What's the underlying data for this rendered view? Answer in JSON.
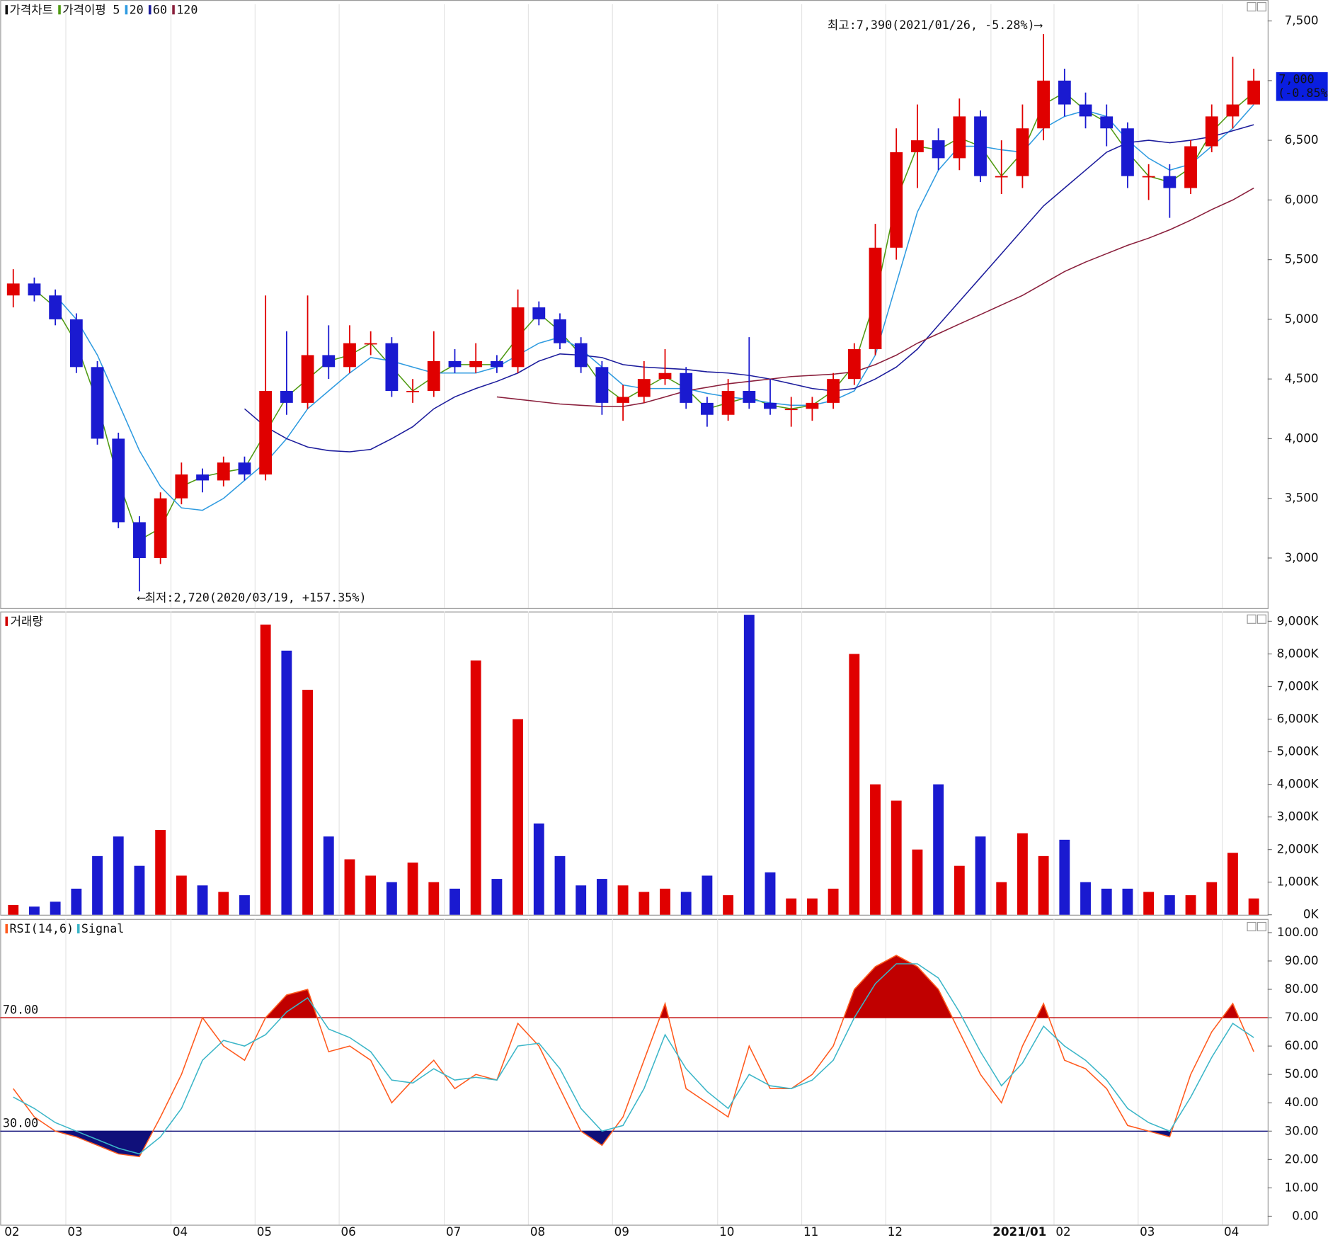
{
  "chart_data": [
    {
      "type": "candlestick",
      "title": "가격차트",
      "ma_label": "가격이평",
      "categories": [
        "02",
        null,
        null,
        "03",
        null,
        null,
        null,
        null,
        "04",
        null,
        null,
        null,
        "05",
        null,
        null,
        null,
        "06",
        null,
        null,
        null,
        null,
        "07",
        null,
        null,
        null,
        "08",
        null,
        null,
        null,
        "09",
        null,
        null,
        null,
        null,
        "10",
        null,
        null,
        null,
        "11",
        null,
        null,
        null,
        "12",
        null,
        null,
        null,
        null,
        "2021/01",
        null,
        null,
        "02",
        null,
        null,
        null,
        "03",
        null,
        null,
        null,
        "04",
        null
      ],
      "open": [
        5200,
        5300,
        5200,
        5000,
        4600,
        4000,
        3300,
        3000,
        3500,
        3700,
        3650,
        3800,
        3700,
        4400,
        4300,
        4700,
        4600,
        4800,
        4800,
        4400,
        4400,
        4650,
        4600,
        4650,
        4600,
        5100,
        5000,
        4800,
        4600,
        4300,
        4350,
        4500,
        4550,
        4300,
        4200,
        4400,
        4300,
        4250,
        4250,
        4300,
        4500,
        4750,
        5600,
        6400,
        6500,
        6350,
        6700,
        6200,
        6200,
        6600,
        7000,
        6800,
        6700,
        6600,
        6200,
        6200,
        6100,
        6450,
        6700,
        6800
      ],
      "high": [
        5420,
        5350,
        5250,
        5050,
        4650,
        4050,
        3350,
        3550,
        3800,
        3750,
        3850,
        3850,
        5200,
        4900,
        5200,
        4950,
        4950,
        4900,
        4850,
        4500,
        4900,
        4750,
        4800,
        4700,
        5250,
        5150,
        5050,
        4850,
        4650,
        4450,
        4650,
        4750,
        4600,
        4350,
        4500,
        4850,
        4500,
        4350,
        4350,
        4550,
        4800,
        5800,
        6600,
        6800,
        6600,
        6850,
        6750,
        6500,
        6800,
        7390,
        7100,
        6900,
        6800,
        6650,
        6300,
        6300,
        6500,
        6800,
        7200,
        7100
      ],
      "low": [
        5100,
        5150,
        4950,
        4550,
        3950,
        3250,
        2720,
        2950,
        3450,
        3550,
        3600,
        3650,
        3650,
        4200,
        4250,
        4500,
        4550,
        4700,
        4350,
        4300,
        4350,
        4550,
        4550,
        4550,
        4550,
        4950,
        4750,
        4550,
        4200,
        4150,
        4300,
        4450,
        4250,
        4100,
        4150,
        4250,
        4200,
        4100,
        4150,
        4250,
        4450,
        4700,
        5500,
        6100,
        6250,
        6250,
        6150,
        6050,
        6100,
        6500,
        6700,
        6600,
        6450,
        6100,
        6000,
        5850,
        6050,
        6400,
        6600,
        6850
      ],
      "close": [
        5300,
        5200,
        5000,
        4600,
        4000,
        3300,
        3000,
        3500,
        3700,
        3650,
        3800,
        3700,
        4400,
        4300,
        4700,
        4600,
        4800,
        4800,
        4400,
        4400,
        4650,
        4600,
        4650,
        4600,
        5100,
        5000,
        4800,
        4600,
        4300,
        4350,
        4500,
        4550,
        4300,
        4200,
        4400,
        4300,
        4250,
        4250,
        4300,
        4500,
        4750,
        5600,
        6400,
        6500,
        6350,
        6700,
        6200,
        6200,
        6600,
        7000,
        6800,
        6700,
        6600,
        6200,
        6200,
        6100,
        6450,
        6700,
        6800,
        7000
      ],
      "up_color": "#e00000",
      "down_color": "#1a1ad0",
      "series": [
        {
          "name": "5",
          "color": "#4f9a12",
          "values": [
            null,
            5250,
            5100,
            4800,
            4300,
            3650,
            3150,
            3250,
            3600,
            3680,
            3720,
            3750,
            4050,
            4350,
            4500,
            4650,
            4700,
            4800,
            4600,
            4400,
            4520,
            4620,
            4620,
            4620,
            4850,
            5050,
            4900,
            4700,
            4450,
            4320,
            4420,
            4520,
            4420,
            4250,
            4300,
            4350,
            4280,
            4250,
            4280,
            4400,
            4620,
            5170,
            6000,
            6450,
            6420,
            6520,
            6450,
            6200,
            6400,
            6800,
            6900,
            6750,
            6650,
            6400,
            6200,
            6150,
            6270,
            6570,
            6750,
            6900
          ]
        },
        {
          "name": "20",
          "color": "#2f9be0",
          "values": [
            null,
            null,
            5200,
            5000,
            4700,
            4300,
            3900,
            3600,
            3420,
            3400,
            3500,
            3650,
            3800,
            4000,
            4250,
            4400,
            4550,
            4680,
            4650,
            4600,
            4550,
            4550,
            4550,
            4600,
            4700,
            4800,
            4850,
            4750,
            4600,
            4450,
            4420,
            4420,
            4420,
            4380,
            4350,
            4330,
            4300,
            4280,
            4280,
            4320,
            4400,
            4700,
            5300,
            5900,
            6250,
            6450,
            6450,
            6420,
            6400,
            6600,
            6700,
            6750,
            6700,
            6500,
            6350,
            6250,
            6300,
            6450,
            6600,
            6800
          ]
        },
        {
          "name": "60",
          "color": "#1c1c9c",
          "values": [
            null,
            null,
            null,
            null,
            null,
            null,
            null,
            null,
            null,
            null,
            null,
            4250,
            4100,
            4000,
            3930,
            3900,
            3890,
            3910,
            4000,
            4100,
            4250,
            4350,
            4420,
            4480,
            4550,
            4650,
            4710,
            4700,
            4680,
            4620,
            4600,
            4590,
            4580,
            4560,
            4550,
            4530,
            4500,
            4460,
            4420,
            4400,
            4420,
            4500,
            4600,
            4750,
            4950,
            5150,
            5350,
            5550,
            5750,
            5950,
            6100,
            6250,
            6400,
            6480,
            6500,
            6480,
            6500,
            6530,
            6580,
            6630
          ]
        },
        {
          "name": "120",
          "color": "#8a1f3c",
          "values": [
            null,
            null,
            null,
            null,
            null,
            null,
            null,
            null,
            null,
            null,
            null,
            null,
            null,
            null,
            null,
            null,
            null,
            null,
            null,
            null,
            null,
            null,
            null,
            4350,
            4330,
            4310,
            4290,
            4280,
            4270,
            4270,
            4300,
            4350,
            4400,
            4430,
            4460,
            4480,
            4500,
            4520,
            4530,
            4540,
            4560,
            4620,
            4700,
            4800,
            4880,
            4960,
            5040,
            5120,
            5200,
            5300,
            5400,
            5480,
            5550,
            5620,
            5680,
            5750,
            5830,
            5920,
            6000,
            6100
          ]
        }
      ],
      "ylim": [
        2580,
        7640
      ],
      "yticks": [
        {
          "value": 3000,
          "label": "3,000"
        },
        {
          "value": 3500,
          "label": "3,500"
        },
        {
          "value": 4000,
          "label": "4,000"
        },
        {
          "value": 4500,
          "label": "4,500"
        },
        {
          "value": 5000,
          "label": "5,000"
        },
        {
          "value": 5500,
          "label": "5,500"
        },
        {
          "value": 6000,
          "label": "6,000"
        },
        {
          "value": 6500,
          "label": "6,500"
        },
        {
          "value": 7000,
          "label": "7,000"
        },
        {
          "value": 7500,
          "label": "7,500"
        }
      ],
      "high_annotation": "최고:7,390(2021/01/26, -5.28%)⟶",
      "low_annotation": "⟵최저:2,720(2020/03/19, +157.35%)",
      "last_price_label": "7,000",
      "last_change_label": "(-0.85%)"
    },
    {
      "type": "bar",
      "title": "거래량",
      "color": "#d00000",
      "values": [
        300,
        250,
        400,
        800,
        1800,
        2400,
        1500,
        2600,
        1200,
        900,
        700,
        600,
        8900,
        8100,
        6900,
        2400,
        1700,
        1200,
        1000,
        1600,
        1000,
        800,
        7800,
        1100,
        6000,
        2800,
        1800,
        900,
        1100,
        900,
        700,
        800,
        700,
        1200,
        600,
        9200,
        1300,
        500,
        500,
        800,
        8000,
        4000,
        3500,
        2000,
        4000,
        1500,
        2400,
        1000,
        2500,
        1800,
        2300,
        1000,
        800,
        800,
        700,
        600,
        600,
        1000,
        1900,
        500
      ],
      "ylim": [
        0,
        9300
      ],
      "yticks": [
        {
          "value": 0,
          "label": "0K"
        },
        {
          "value": 1000,
          "label": "1,000K"
        },
        {
          "value": 2000,
          "label": "2,000K"
        },
        {
          "value": 3000,
          "label": "3,000K"
        },
        {
          "value": 4000,
          "label": "4,000K"
        },
        {
          "value": 5000,
          "label": "5,000K"
        },
        {
          "value": 6000,
          "label": "6,000K"
        },
        {
          "value": 7000,
          "label": "7,000K"
        },
        {
          "value": 8000,
          "label": "8,000K"
        },
        {
          "value": 9000,
          "label": "9,000K"
        }
      ]
    },
    {
      "type": "line",
      "series": [
        {
          "name": "RSI(14,6)",
          "color": "#ff5a1e",
          "values": [
            45,
            35,
            30,
            28,
            25,
            22,
            21,
            35,
            50,
            70,
            60,
            55,
            70,
            78,
            80,
            58,
            60,
            55,
            40,
            48,
            55,
            45,
            50,
            48,
            68,
            60,
            45,
            30,
            25,
            35,
            55,
            75,
            45,
            40,
            35,
            60,
            45,
            45,
            50,
            60,
            80,
            88,
            92,
            88,
            80,
            65,
            50,
            40,
            60,
            75,
            55,
            52,
            45,
            32,
            30,
            28,
            50,
            65,
            75,
            58
          ]
        },
        {
          "name": "Signal",
          "color": "#3cb6c8",
          "values": [
            42,
            38,
            33,
            30,
            27,
            24,
            22,
            28,
            38,
            55,
            62,
            60,
            64,
            72,
            77,
            66,
            63,
            58,
            48,
            47,
            52,
            48,
            49,
            48,
            60,
            61,
            52,
            38,
            30,
            32,
            45,
            64,
            52,
            44,
            38,
            50,
            46,
            45,
            48,
            55,
            70,
            82,
            89,
            89,
            84,
            72,
            58,
            46,
            54,
            67,
            60,
            55,
            48,
            38,
            33,
            30,
            42,
            56,
            68,
            63
          ]
        }
      ],
      "levels": [
        {
          "value": 70,
          "label": "70.00",
          "color": "#c00000"
        },
        {
          "value": 30,
          "label": "30.00",
          "color": "#10107a"
        }
      ],
      "ylim": [
        -3,
        104.8
      ],
      "yticks": [
        {
          "value": 0,
          "label": "0.00"
        },
        {
          "value": 10,
          "label": "10.00"
        },
        {
          "value": 20,
          "label": "20.00"
        },
        {
          "value": 30,
          "label": "30.00"
        },
        {
          "value": 40,
          "label": "40.00"
        },
        {
          "value": 50,
          "label": "50.00"
        },
        {
          "value": 60,
          "label": "60.00"
        },
        {
          "value": 70,
          "label": "70.00"
        },
        {
          "value": 80,
          "label": "80.00"
        },
        {
          "value": 90,
          "label": "90.00"
        },
        {
          "value": 100,
          "label": "100.00"
        }
      ]
    }
  ]
}
